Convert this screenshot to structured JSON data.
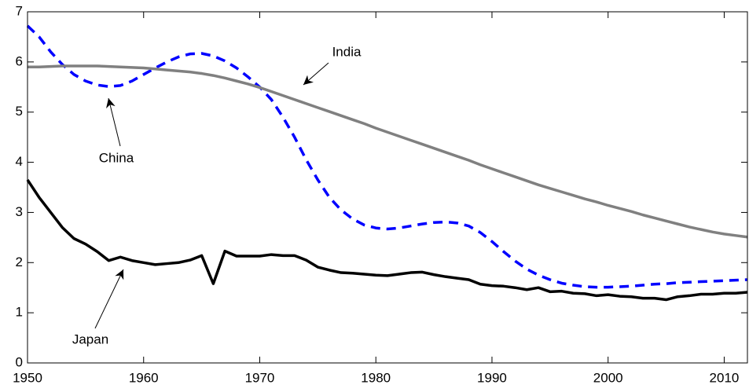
{
  "chart_data": {
    "type": "line",
    "x": [
      1950,
      1951,
      1952,
      1953,
      1954,
      1955,
      1956,
      1957,
      1958,
      1959,
      1960,
      1961,
      1962,
      1963,
      1964,
      1965,
      1966,
      1967,
      1968,
      1969,
      1970,
      1971,
      1972,
      1973,
      1974,
      1975,
      1976,
      1977,
      1978,
      1979,
      1980,
      1981,
      1982,
      1983,
      1984,
      1985,
      1986,
      1987,
      1988,
      1989,
      1990,
      1991,
      1992,
      1993,
      1994,
      1995,
      1996,
      1997,
      1998,
      1999,
      2000,
      2001,
      2002,
      2003,
      2004,
      2005,
      2006,
      2007,
      2008,
      2009,
      2010,
      2011,
      2012
    ],
    "series": [
      {
        "name": "China",
        "color": "#0000ff",
        "linestyle": "dashed",
        "values": [
          6.72,
          6.5,
          6.2,
          5.95,
          5.75,
          5.62,
          5.54,
          5.51,
          5.53,
          5.62,
          5.75,
          5.88,
          6.0,
          6.1,
          6.16,
          6.17,
          6.12,
          6.02,
          5.88,
          5.7,
          5.5,
          5.25,
          4.9,
          4.5,
          4.05,
          3.65,
          3.3,
          3.05,
          2.87,
          2.75,
          2.69,
          2.67,
          2.69,
          2.73,
          2.77,
          2.8,
          2.81,
          2.79,
          2.73,
          2.6,
          2.42,
          2.22,
          2.03,
          1.87,
          1.75,
          1.66,
          1.59,
          1.55,
          1.52,
          1.51,
          1.51,
          1.52,
          1.53,
          1.55,
          1.57,
          1.58,
          1.6,
          1.61,
          1.62,
          1.63,
          1.64,
          1.65,
          1.66
        ]
      },
      {
        "name": "India",
        "color": "#808080",
        "linestyle": "solid",
        "values": [
          5.9,
          5.9,
          5.91,
          5.92,
          5.92,
          5.92,
          5.92,
          5.91,
          5.9,
          5.89,
          5.88,
          5.86,
          5.84,
          5.82,
          5.8,
          5.77,
          5.73,
          5.68,
          5.62,
          5.56,
          5.49,
          5.41,
          5.33,
          5.25,
          5.17,
          5.09,
          5.01,
          4.93,
          4.85,
          4.77,
          4.68,
          4.6,
          4.52,
          4.44,
          4.36,
          4.28,
          4.2,
          4.12,
          4.04,
          3.95,
          3.87,
          3.79,
          3.71,
          3.63,
          3.55,
          3.48,
          3.41,
          3.34,
          3.27,
          3.21,
          3.14,
          3.08,
          3.02,
          2.95,
          2.89,
          2.83,
          2.77,
          2.71,
          2.66,
          2.61,
          2.57,
          2.54,
          2.51
        ]
      },
      {
        "name": "Japan",
        "color": "#000000",
        "linestyle": "solid",
        "values": [
          3.65,
          3.3,
          3.0,
          2.7,
          2.48,
          2.37,
          2.22,
          2.04,
          2.11,
          2.04,
          2.0,
          1.96,
          1.98,
          2.0,
          2.05,
          2.14,
          1.58,
          2.23,
          2.13,
          2.13,
          2.13,
          2.16,
          2.14,
          2.14,
          2.05,
          1.91,
          1.85,
          1.8,
          1.79,
          1.77,
          1.75,
          1.74,
          1.77,
          1.8,
          1.81,
          1.76,
          1.72,
          1.69,
          1.66,
          1.57,
          1.54,
          1.53,
          1.5,
          1.46,
          1.5,
          1.42,
          1.43,
          1.39,
          1.38,
          1.34,
          1.36,
          1.33,
          1.32,
          1.29,
          1.29,
          1.26,
          1.32,
          1.34,
          1.37,
          1.37,
          1.39,
          1.39,
          1.41
        ]
      }
    ],
    "xlim": [
      1950,
      2012
    ],
    "xticks": [
      1950,
      1960,
      1970,
      1980,
      1990,
      2000,
      2010
    ],
    "ylim": [
      0,
      7
    ],
    "yticks": [
      0,
      1,
      2,
      3,
      4,
      5,
      6,
      7
    ],
    "grid": false,
    "annotations": [
      {
        "text": "India"
      },
      {
        "text": "China"
      },
      {
        "text": "Japan"
      }
    ]
  }
}
